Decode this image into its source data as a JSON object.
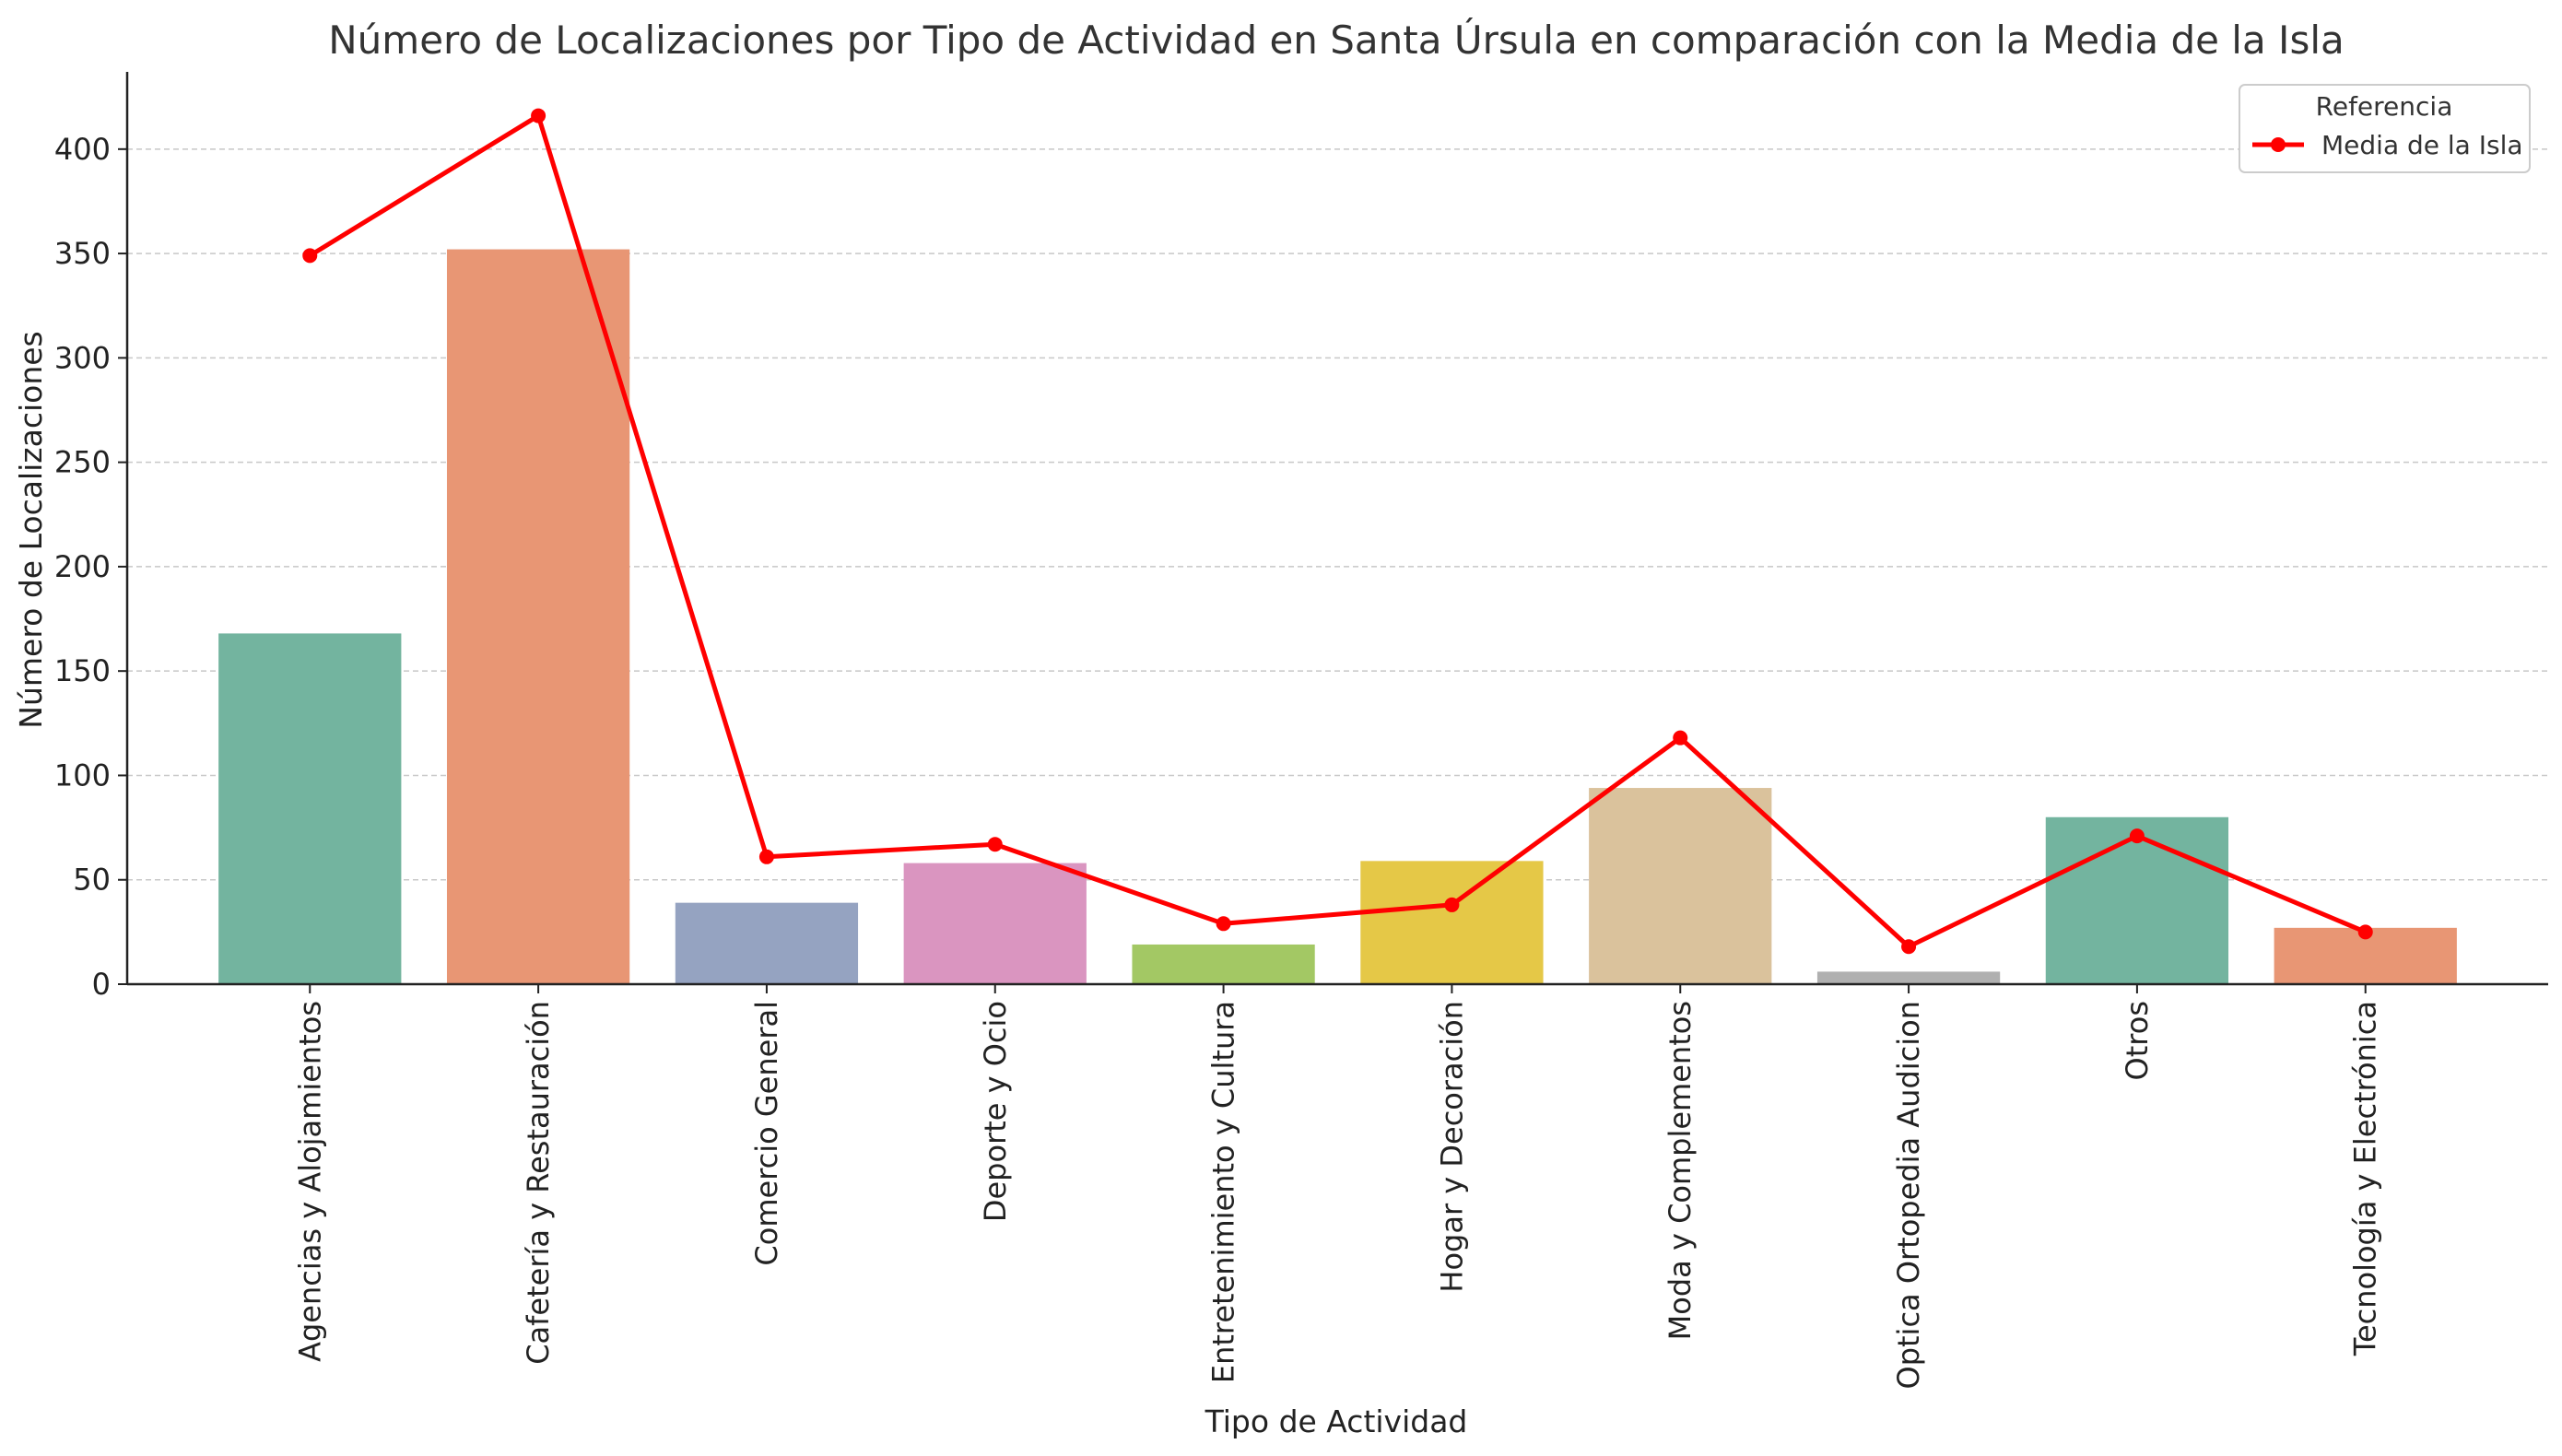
{
  "chart_data": {
    "type": "bar",
    "title": "Número de Localizaciones por Tipo de Actividad en Santa Úrsula en comparación con la Media de la Isla",
    "xlabel": "Tipo de Actividad",
    "ylabel": "Número de Localizaciones",
    "ylim": [
      0,
      437
    ],
    "yticks": [
      0,
      50,
      100,
      150,
      200,
      250,
      300,
      350,
      400
    ],
    "grid": "horizontal-dashed",
    "categories": [
      "Agencias y Alojamientos",
      "Cafetería y Restauración",
      "Comercio General",
      "Deporte y Ocio",
      "Entretenimiento y Cultura",
      "Hogar y Decoración",
      "Moda y Complementos",
      "Optica Ortopedia Audicion",
      "Otros",
      "Tecnología y Electrónica"
    ],
    "series": [
      {
        "kind": "bar",
        "values": [
          168,
          352,
          39,
          58,
          19,
          59,
          94,
          6,
          80,
          27
        ],
        "colors": [
          "#73b49f",
          "#e89674",
          "#95a3c1",
          "#da95c0",
          "#a3c864",
          "#e5c847",
          "#dac29c",
          "#b0b0b0",
          "#73b49f",
          "#e89674"
        ]
      },
      {
        "kind": "line",
        "name": "Media de la Isla",
        "values": [
          349,
          416,
          61,
          67,
          29,
          38,
          118,
          18,
          71,
          25
        ],
        "color": "#ff0000"
      }
    ],
    "legend": {
      "title": "Referencia",
      "placement": "top-right"
    }
  }
}
